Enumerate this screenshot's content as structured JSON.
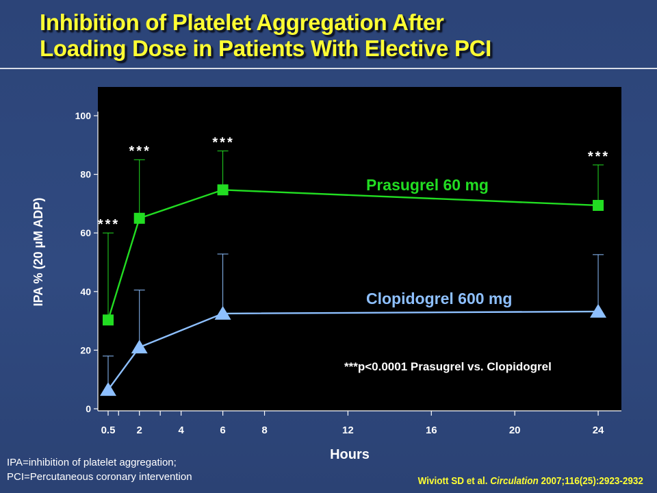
{
  "slide": {
    "title_lines": [
      "Inhibition of Platelet Aggregation After",
      "Loading Dose in Patients With Elective PCI"
    ],
    "footnote_lines": [
      "IPA=inhibition of platelet aggregation;",
      "PCI=Percutaneous coronary intervention"
    ],
    "citation": {
      "authors": "Wiviott SD et al. ",
      "journal": "Circulation",
      "details": " 2007;116(25):2923-2932"
    }
  },
  "chart_data": {
    "type": "line",
    "xlabel": "Hours",
    "ylabel": "IPA % (20 µM ADP)",
    "ylim": [
      0,
      100
    ],
    "yticks": [
      0,
      20,
      40,
      60,
      80,
      100
    ],
    "xticks": [
      {
        "value": 0.5,
        "label": "0.5"
      },
      {
        "value": 2,
        "label": "2"
      },
      {
        "value": 4,
        "label": "4"
      },
      {
        "value": 6,
        "label": "6"
      },
      {
        "value": 8,
        "label": "8"
      },
      {
        "value": 12,
        "label": "12"
      },
      {
        "value": 16,
        "label": "16"
      },
      {
        "value": 20,
        "label": "20"
      },
      {
        "value": 24,
        "label": "24"
      }
    ],
    "series": [
      {
        "name": "Prasugrel 60 mg",
        "color": "#22dd22",
        "marker": "square",
        "x": [
          0.5,
          2,
          6,
          24
        ],
        "y": [
          30.3,
          65,
          74.7,
          69.4
        ],
        "error_upper": [
          60,
          85,
          88,
          83.2
        ]
      },
      {
        "name": "Clopidogrel 600 mg",
        "color": "#8ec0ff",
        "marker": "triangle",
        "x": [
          0.5,
          2,
          6,
          24
        ],
        "y": [
          6.5,
          21,
          32.5,
          33.2
        ],
        "error_upper": [
          18,
          40.5,
          52.8,
          52.6
        ]
      }
    ],
    "significance_marks": [
      "***",
      "***",
      "***",
      "***"
    ],
    "annotation": "***p<0.0001 Prasugrel vs. Clopidogrel",
    "background_color": "#000000",
    "grid": false
  }
}
